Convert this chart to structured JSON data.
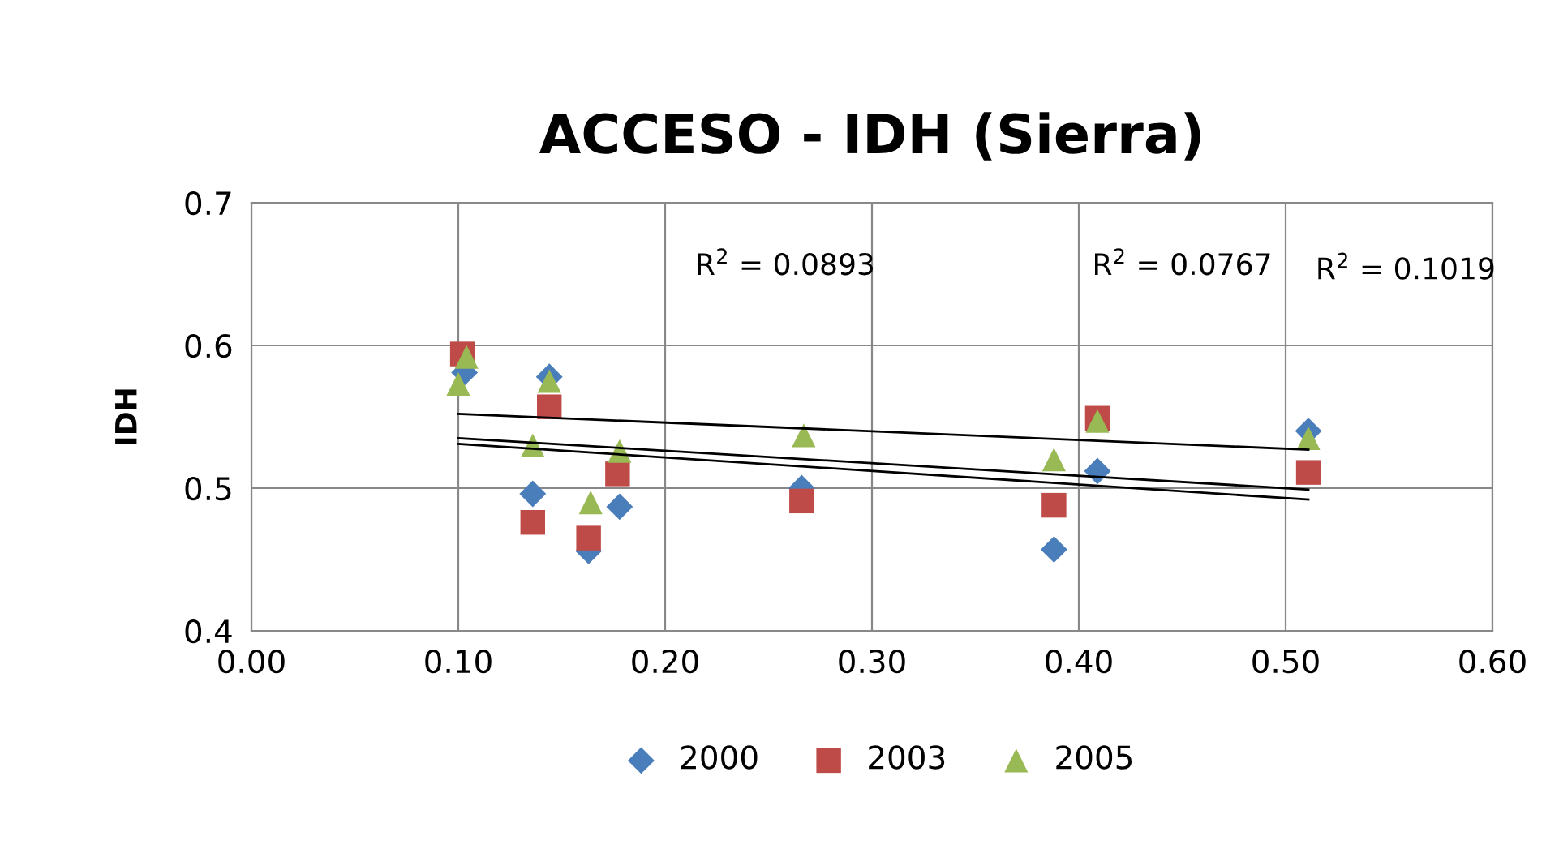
{
  "chart_data": {
    "type": "scatter",
    "title": "ACCESO - IDH (Sierra)",
    "ylabel": "IDH",
    "xlim": [
      0.0,
      0.6
    ],
    "xticks": [
      {
        "value": 0.0,
        "label": "0.00"
      },
      {
        "value": 0.1,
        "label": "0.10"
      },
      {
        "value": 0.2,
        "label": "0.20"
      },
      {
        "value": 0.3,
        "label": "0.30"
      },
      {
        "value": 0.4,
        "label": "0.40"
      },
      {
        "value": 0.5,
        "label": "0.50"
      },
      {
        "value": 0.6,
        "label": "0.60"
      }
    ],
    "ylim": [
      0.4,
      0.7
    ],
    "yticks": [
      0.4,
      0.5,
      0.6,
      0.7
    ],
    "grid": true,
    "legend": "bottom",
    "annotations": [
      "R$^{2}$ = 0.0893",
      "R$^{2}$ = 0.0767",
      "R$^{2}$ = 0.1019"
    ],
    "series": [
      {
        "name": "2000",
        "color": "#4a7ebb",
        "marker": "diamond",
        "x": [
          0.103,
          0.144,
          0.136,
          0.163,
          0.178,
          0.266,
          0.388,
          0.409,
          0.511
        ],
        "values": [
          0.581,
          0.578,
          0.496,
          0.456,
          0.487,
          0.5,
          0.457,
          0.512,
          0.54
        ]
      },
      {
        "name": "2003",
        "color": "#be4b48",
        "marker": "square",
        "x": [
          0.102,
          0.144,
          0.136,
          0.163,
          0.177,
          0.266,
          0.388,
          0.409,
          0.511
        ],
        "values": [
          0.594,
          0.557,
          0.476,
          0.465,
          0.51,
          0.491,
          0.488,
          0.549,
          0.511
        ]
      },
      {
        "name": "2005",
        "color": "#98b954",
        "marker": "triangle",
        "x": [
          0.1,
          0.104,
          0.144,
          0.136,
          0.164,
          0.178,
          0.267,
          0.388,
          0.409,
          0.511
        ],
        "values": [
          0.573,
          0.592,
          0.575,
          0.53,
          0.49,
          0.526,
          0.537,
          0.52,
          0.547,
          0.535
        ]
      },
      {
        "type": "line",
        "color": "#000000",
        "marker": "none",
        "x": [
          0.1,
          0.511
        ],
        "values": [
          0.552,
          0.527
        ]
      },
      {
        "type": "line",
        "color": "#000000",
        "marker": "none",
        "x": [
          0.1,
          0.511
        ],
        "values": [
          0.535,
          0.499
        ]
      },
      {
        "type": "line",
        "color": "#000000",
        "marker": "none",
        "x": [
          0.1,
          0.511
        ],
        "values": [
          0.531,
          0.492
        ]
      }
    ]
  }
}
